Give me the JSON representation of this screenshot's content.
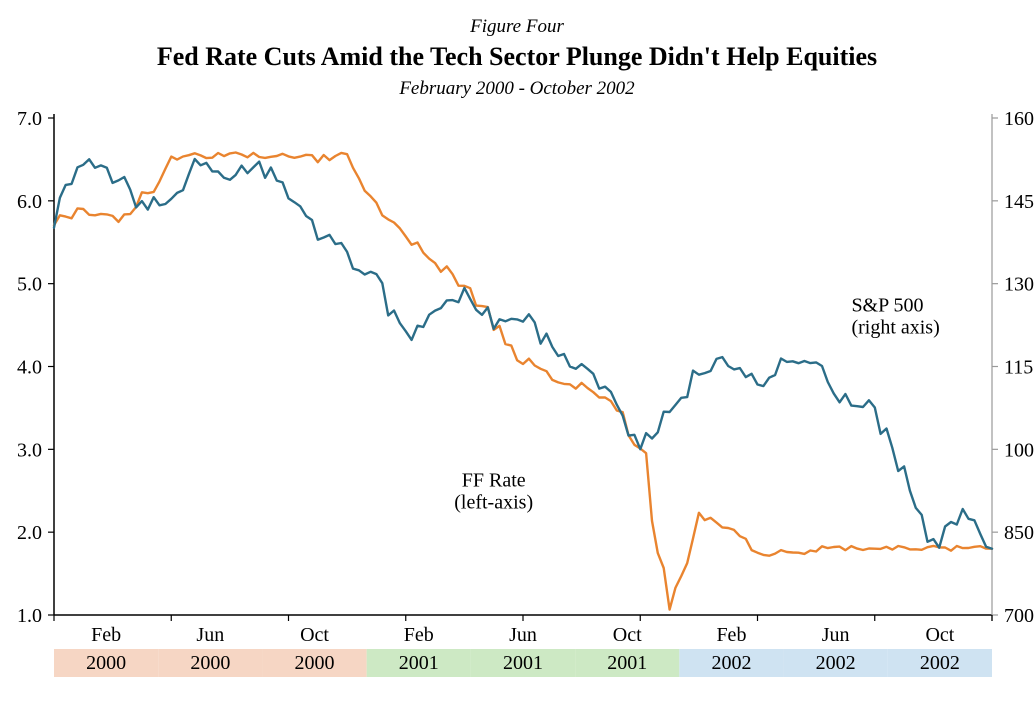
{
  "figure_label": "Figure Four",
  "title": "Fed Rate Cuts Amid the Tech Sector Plunge Didn't Help Equities",
  "subtitle": "February 2000 - October 2002",
  "chart": {
    "type": "line-dual-axis",
    "background_color": "#ffffff",
    "axis_color": "#000000",
    "frame_right_color": "#9a9a9a",
    "tick_label_fontsize": 20,
    "month_label_fontsize": 20,
    "title_fontsize": 26,
    "subtitle_fontsize": 19,
    "figlabel_fontsize": 19,
    "line_width": 2.4,
    "x_count": 33,
    "left_axis": {
      "min": 1.0,
      "max": 7.0,
      "tick_step": 1.0,
      "ticks": [
        "1.0",
        "2.0",
        "3.0",
        "4.0",
        "5.0",
        "6.0",
        "7.0"
      ]
    },
    "right_axis": {
      "min": 700,
      "max": 1600,
      "tick_step": 150,
      "ticks": [
        "700",
        "850",
        "1000",
        "1150",
        "1300",
        "1450",
        "1600"
      ]
    },
    "month_labels": [
      "Feb",
      "Jun",
      "Oct",
      "Feb",
      "Jun",
      "Oct",
      "Feb",
      "Jun",
      "Oct"
    ],
    "year_bands": [
      {
        "label": "2000",
        "color": "#f6d6c4"
      },
      {
        "label": "2000",
        "color": "#f6d6c4"
      },
      {
        "label": "2000",
        "color": "#f6d6c4"
      },
      {
        "label": "2001",
        "color": "#cde9c4"
      },
      {
        "label": "2001",
        "color": "#cde9c4"
      },
      {
        "label": "2001",
        "color": "#cde9c4"
      },
      {
        "label": "2002",
        "color": "#cfe3f2"
      },
      {
        "label": "2002",
        "color": "#cfe3f2"
      },
      {
        "label": "2002",
        "color": "#cfe3f2"
      }
    ],
    "series": [
      {
        "id": "ff_rate",
        "label": "FF Rate",
        "sublabel": "(left-axis)",
        "axis": "left",
        "color": "#e9842f",
        "label_pos": {
          "x": 15,
          "anchor": "middle"
        },
        "values": [
          5.75,
          5.9,
          5.75,
          6.0,
          6.5,
          6.55,
          6.55,
          6.55,
          6.55,
          6.5,
          6.55,
          6.0,
          5.55,
          5.25,
          5.0,
          4.5,
          4.1,
          3.8,
          3.75,
          3.55,
          3.05,
          1.25,
          2.2,
          2.0,
          1.75,
          1.75,
          1.8,
          1.8,
          1.8,
          1.8,
          1.8,
          1.8,
          1.8
        ]
      },
      {
        "id": "sp500",
        "label": "S&P 500",
        "sublabel": "(right axis)",
        "axis": "right",
        "color": "#2b6d88",
        "label_pos": {
          "x": 27,
          "anchor": "start"
        },
        "values": [
          1415,
          1520,
          1500,
          1440,
          1460,
          1520,
          1490,
          1520,
          1450,
          1390,
          1350,
          1310,
          1200,
          1260,
          1280,
          1230,
          1250,
          1180,
          1140,
          1090,
          1000,
          1070,
          1140,
          1160,
          1110,
          1160,
          1150,
          1090,
          1080,
          950,
          820,
          880,
          820
        ]
      }
    ],
    "annotations": [
      {
        "target": "ff_rate",
        "x": 15.0,
        "y_left": 2.4
      },
      {
        "target": "sp500",
        "x": 27.0,
        "y_right": 1240
      }
    ],
    "spike": {
      "series": "ff_rate",
      "x_index": 21,
      "low": 1.25,
      "rebound": 2.65
    }
  }
}
